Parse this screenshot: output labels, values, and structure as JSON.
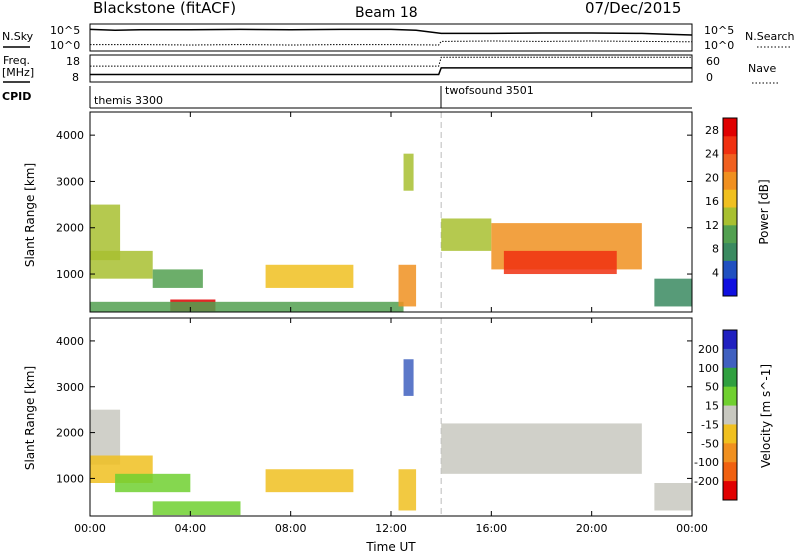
{
  "header": {
    "title": "Blackstone (fitACF)",
    "beam": "Beam 18",
    "date": "07/Dec/2015"
  },
  "summary_panel": {
    "nsky_label": "N.Sky",
    "nsky_ticks": [
      "10^5",
      "10^0"
    ],
    "nsearch_label": "N.Search",
    "nsearch_ticks": [
      "10^5",
      "10^0"
    ],
    "freq_label_1": "Freq.",
    "freq_label_2": "[MHz]",
    "freq_ticks": [
      "18",
      "8"
    ],
    "nave_label": "Nave",
    "nave_ticks": [
      "60",
      "0"
    ],
    "cpid_label": "CPID",
    "cpid_entries": [
      {
        "name": "themis 3300",
        "start_hour": 0
      },
      {
        "name": "twofsound 3501",
        "start_hour": 14
      }
    ]
  },
  "colors": {
    "power_scale": [
      "#1010e0",
      "#2050c0",
      "#3a8a60",
      "#52a050",
      "#a8c030",
      "#f0c020",
      "#f09020",
      "#f06020",
      "#f03010",
      "#e00000"
    ],
    "velocity_scale": [
      "#2020c0",
      "#4060c0",
      "#30a040",
      "#70d030",
      "#c8c8c0",
      "#f0c020",
      "#f09020",
      "#f06010",
      "#e00000"
    ]
  },
  "chart_data": [
    {
      "type": "line",
      "title": "",
      "panel": "N.Sky / N.Search",
      "x_unit": "hour UT",
      "series": [
        {
          "name": "N.Sky",
          "x": [
            0,
            1,
            2,
            4,
            6,
            8,
            10,
            12,
            13,
            14,
            16,
            18,
            20,
            22,
            23,
            24
          ],
          "y": [
            4.4,
            4.2,
            4.3,
            4.3,
            4.4,
            4.3,
            4.4,
            4.4,
            4.2,
            3.4,
            3.4,
            3.5,
            3.5,
            3.4,
            3.2,
            3.0
          ]
        },
        {
          "name": "N.Search",
          "x": [
            0,
            2,
            4,
            6,
            8,
            10,
            12,
            13.9,
            14,
            16,
            18,
            20,
            22,
            24
          ],
          "y": [
            0.6,
            0.6,
            0.5,
            0.6,
            0.5,
            0.6,
            0.6,
            0.5,
            1.4,
            1.5,
            1.4,
            1.5,
            1.4,
            1.3
          ]
        }
      ],
      "ylim": [
        0,
        5
      ]
    },
    {
      "type": "line",
      "title": "",
      "panel": "Freq. / Nave",
      "series": [
        {
          "name": "Freq.",
          "x": [
            0,
            13.9,
            14,
            24
          ],
          "y": [
            10.5,
            10.5,
            13.5,
            13.5
          ]
        },
        {
          "name": "Nave",
          "x": [
            0,
            13.9,
            14,
            24
          ],
          "y": [
            38,
            38,
            62,
            62
          ]
        }
      ],
      "ylim_freq": [
        8,
        18
      ],
      "ylim_nave": [
        0,
        60
      ]
    },
    {
      "type": "heatmap",
      "title": "",
      "ylabel": "Slant Range [km]",
      "xlabel": "",
      "colorbar_label": "Power [dB]",
      "colorbar_ticks": [
        "4",
        "8",
        "12",
        "16",
        "20",
        "24",
        "28"
      ],
      "colorbar_range": [
        0,
        30
      ],
      "x_ticks": [
        "00:00",
        "04:00",
        "08:00",
        "12:00",
        "16:00",
        "20:00",
        "00:00"
      ],
      "y_ticks": [
        "1000",
        "2000",
        "3000",
        "4000"
      ],
      "xlim": [
        0,
        24
      ],
      "ylim": [
        180,
        4500
      ],
      "regions": [
        {
          "t0": 0.0,
          "t1": 1.2,
          "r0": 1300,
          "r1": 2500,
          "value": 12
        },
        {
          "t0": 0.0,
          "t1": 2.5,
          "r0": 900,
          "r1": 1500,
          "value": 14
        },
        {
          "t0": 2.5,
          "t1": 4.5,
          "r0": 700,
          "r1": 1100,
          "value": 10
        },
        {
          "t0": 3.2,
          "t1": 5.0,
          "r0": 200,
          "r1": 450,
          "value": 27
        },
        {
          "t0": 0.0,
          "t1": 12.5,
          "r0": 180,
          "r1": 400,
          "value": 10
        },
        {
          "t0": 7.0,
          "t1": 10.5,
          "r0": 700,
          "r1": 1200,
          "value": 17
        },
        {
          "t0": 12.3,
          "t1": 13.0,
          "r0": 300,
          "r1": 1200,
          "value": 18
        },
        {
          "t0": 12.5,
          "t1": 12.9,
          "r0": 2800,
          "r1": 3600,
          "value": 14
        },
        {
          "t0": 14.0,
          "t1": 16.0,
          "r0": 1500,
          "r1": 2200,
          "value": 12
        },
        {
          "t0": 16.0,
          "t1": 22.0,
          "r0": 1100,
          "r1": 2100,
          "value": 20
        },
        {
          "t0": 16.5,
          "t1": 21.0,
          "r0": 1000,
          "r1": 1500,
          "value": 25
        },
        {
          "t0": 22.5,
          "t1": 24.0,
          "r0": 300,
          "r1": 900,
          "value": 8
        }
      ]
    },
    {
      "type": "heatmap",
      "title": "",
      "ylabel": "Slant Range [km]",
      "xlabel": "Time UT",
      "colorbar_label": "Velocity [m s^-1]",
      "colorbar_ticks": [
        "200",
        "100",
        "50",
        "15",
        "-15",
        "-50",
        "-100",
        "-200"
      ],
      "colorbar_range": [
        -250,
        250
      ],
      "x_ticks": [
        "00:00",
        "04:00",
        "08:00",
        "12:00",
        "16:00",
        "20:00",
        "00:00"
      ],
      "y_ticks": [
        "1000",
        "2000",
        "3000",
        "4000"
      ],
      "xlim": [
        0,
        24
      ],
      "ylim": [
        180,
        4500
      ],
      "regions": [
        {
          "t0": 0.0,
          "t1": 1.2,
          "r0": 1300,
          "r1": 2500,
          "value": 0
        },
        {
          "t0": 0.0,
          "t1": 2.5,
          "r0": 900,
          "r1": 1500,
          "value": -30
        },
        {
          "t0": 1.0,
          "t1": 4.0,
          "r0": 700,
          "r1": 1100,
          "value": 40
        },
        {
          "t0": 2.5,
          "t1": 6.0,
          "r0": 200,
          "r1": 500,
          "value": 30
        },
        {
          "t0": 7.0,
          "t1": 10.5,
          "r0": 700,
          "r1": 1200,
          "value": -60
        },
        {
          "t0": 12.3,
          "t1": 13.0,
          "r0": 300,
          "r1": 1200,
          "value": -70
        },
        {
          "t0": 12.5,
          "t1": 12.9,
          "r0": 2800,
          "r1": 3600,
          "value": 150
        },
        {
          "t0": 14.0,
          "t1": 22.0,
          "r0": 1100,
          "r1": 2200,
          "value": 0
        },
        {
          "t0": 22.5,
          "t1": 24.0,
          "r0": 300,
          "r1": 900,
          "value": 0
        }
      ]
    }
  ]
}
